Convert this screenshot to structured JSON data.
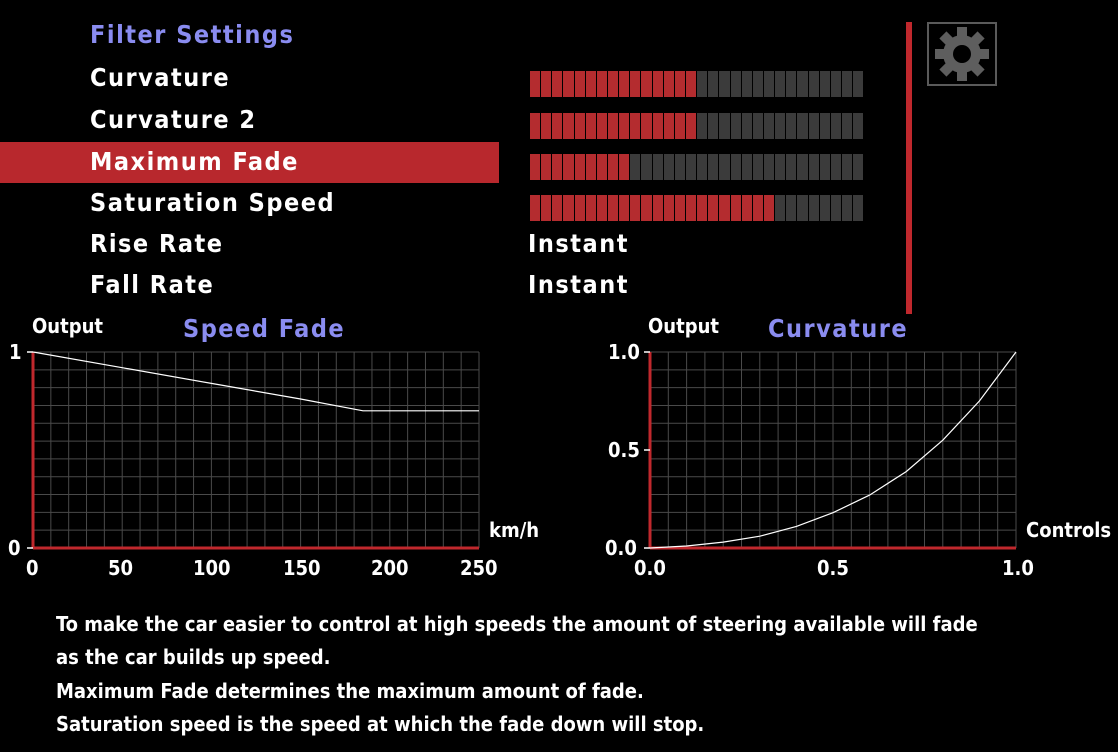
{
  "header": {
    "title": "Filter Settings"
  },
  "menu": {
    "items": [
      {
        "label": "Curvature"
      },
      {
        "label": "Curvature 2"
      },
      {
        "label": "Maximum Fade"
      },
      {
        "label": "Saturation Speed"
      },
      {
        "label": "Rise Rate"
      },
      {
        "label": "Fall Rate"
      }
    ],
    "selected_index": 2
  },
  "settings": {
    "curvature_level": 0.5,
    "curvature2_level": 0.5,
    "maximum_fade_level": 0.3,
    "saturation_speed_level": 0.73,
    "bar_segments": 30,
    "rise_rate_value": "Instant",
    "fall_rate_value": "Instant"
  },
  "speed_fade_chart": {
    "title": "Speed Fade",
    "y_label": "Output",
    "x_label": "km/h",
    "y_ticks": [
      "1",
      "0"
    ],
    "x_ticks": [
      "0",
      "50",
      "100",
      "150",
      "200",
      "250"
    ]
  },
  "curvature_chart": {
    "title": "Curvature",
    "y_label": "Output",
    "x_label": "Controls",
    "y_ticks": [
      "1.0",
      "0.5",
      "0.0"
    ],
    "x_ticks": [
      "0.0",
      "0.5",
      "1.0"
    ]
  },
  "chart_data": [
    {
      "type": "line",
      "title": "Speed Fade",
      "xlabel": "km/h",
      "ylabel": "Output",
      "xlim": [
        0,
        250
      ],
      "ylim": [
        0,
        1
      ],
      "grid": true,
      "x": [
        0,
        50,
        100,
        150,
        185,
        250
      ],
      "y": [
        1.0,
        0.92,
        0.84,
        0.76,
        0.7,
        0.7
      ]
    },
    {
      "type": "line",
      "title": "Curvature",
      "xlabel": "Controls",
      "ylabel": "Output",
      "xlim": [
        0,
        1
      ],
      "ylim": [
        0,
        1
      ],
      "grid": true,
      "x": [
        0,
        0.1,
        0.2,
        0.3,
        0.4,
        0.5,
        0.6,
        0.7,
        0.8,
        0.9,
        1.0
      ],
      "y": [
        0,
        0.01,
        0.03,
        0.06,
        0.11,
        0.18,
        0.27,
        0.39,
        0.55,
        0.75,
        1.0
      ]
    }
  ],
  "description": {
    "line1": "To make the car easier to control at high speeds the amount of steering available will fade",
    "line2": "as the car builds up speed.",
    "line3": " Maximum Fade determines the maximum amount of fade.",
    "line4": " Saturation speed is the speed at which the fade down will stop."
  },
  "colors": {
    "accent_red": "#b8282d",
    "title_blue": "#8a8cf0",
    "bar_empty": "#3b3b3b"
  },
  "icons": {
    "settings": "gear-icon"
  }
}
